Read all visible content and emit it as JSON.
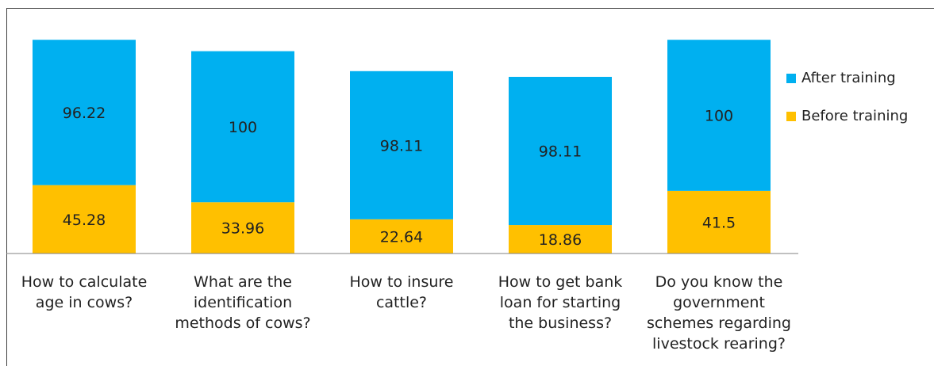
{
  "chart_data": {
    "type": "bar",
    "stacked": true,
    "title": "",
    "xlabel": "",
    "ylabel": "",
    "categories": [
      "How to calculate age in cows?",
      "What are the identification methods of cows?",
      "How to insure cattle?",
      "How to get bank loan for starting the business?",
      "Do you know the government schemes regarding livestock rearing?"
    ],
    "category_lines": [
      [
        "How to calculate",
        "age in cows?"
      ],
      [
        "What are the",
        "identification",
        "methods of cows?"
      ],
      [
        "How to insure",
        "cattle?"
      ],
      [
        "How to get bank",
        "loan for starting",
        "the business?"
      ],
      [
        "Do you know the",
        "government",
        "schemes regarding",
        "livestock rearing?"
      ]
    ],
    "series": [
      {
        "name": "Before training",
        "values": [
          45.28,
          33.96,
          22.64,
          18.86,
          41.5
        ],
        "labels": [
          "45.28",
          "33.96",
          "22.64",
          "18.86",
          "41.5"
        ],
        "color": "#FFC000"
      },
      {
        "name": "After training",
        "values": [
          96.22,
          100,
          98.11,
          98.11,
          100
        ],
        "labels": [
          "96.22",
          "100",
          "98.11",
          "98.11",
          "100"
        ],
        "color": "#00B0F0"
      }
    ],
    "legend": {
      "position": "right",
      "order": [
        "After training",
        "Before training"
      ]
    },
    "grid": false
  }
}
